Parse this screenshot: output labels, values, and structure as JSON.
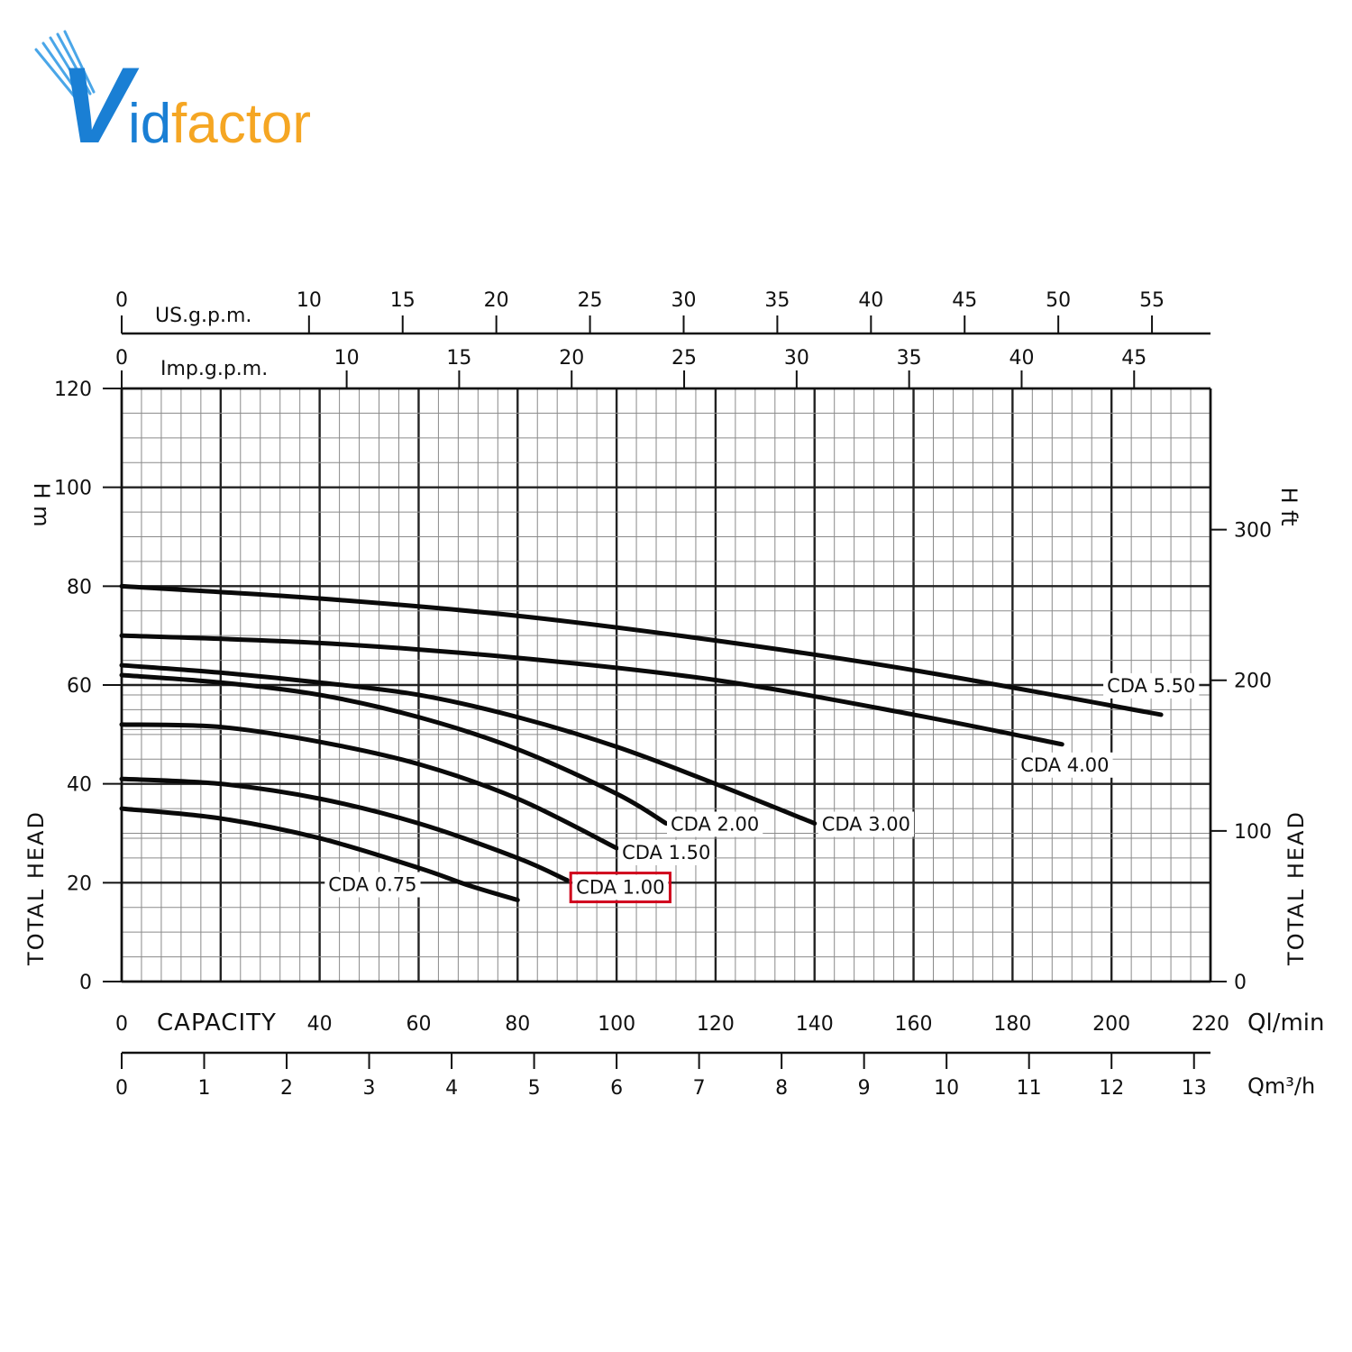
{
  "logo": {
    "text_v": "V",
    "text_id": "id",
    "text_factor": "factor",
    "color_blue": "#1a7fd4",
    "color_orange": "#f5a623"
  },
  "chart_data": {
    "type": "line",
    "xlabel": "CAPACITY",
    "x_unit": "Ql/min",
    "xlim": [
      0,
      220
    ],
    "x_ticks": [
      0,
      40,
      60,
      80,
      100,
      120,
      140,
      160,
      180,
      200,
      220
    ],
    "ylim": [
      0,
      120
    ],
    "y_ticks": [
      0,
      20,
      40,
      60,
      80,
      100,
      120
    ],
    "ylabel": "TOTAL HEAD",
    "y_unit": "H m",
    "y_right_label": "TOTAL HEAD",
    "y_right_unit": "H ft",
    "y_right_ticks": [
      0,
      100,
      200,
      300
    ],
    "y_ft_per_m": 3.2808,
    "secondary_x_axes": [
      {
        "unit": "US.g.p.m.",
        "lpm_per_unit": 3.785,
        "ticks": [
          0,
          10,
          15,
          20,
          25,
          30,
          35,
          40,
          45,
          50,
          55
        ]
      },
      {
        "unit": "Imp.g.p.m.",
        "lpm_per_unit": 4.546,
        "ticks": [
          0,
          10,
          15,
          20,
          25,
          30,
          35,
          40,
          45
        ]
      },
      {
        "unit": "Qm³/h",
        "lpm_per_unit": 16.667,
        "ticks": [
          0,
          1,
          2,
          3,
          4,
          5,
          6,
          7,
          8,
          9,
          10,
          11,
          12,
          13
        ]
      }
    ],
    "highlighted_series": "CDA 1.00",
    "highlight_color": "#d0021b",
    "series": [
      {
        "name": "CDA 0.75",
        "x": [
          0,
          20,
          40,
          60,
          70,
          80
        ],
        "y": [
          35,
          33,
          29,
          23,
          19.5,
          16.5
        ]
      },
      {
        "name": "CDA 1.00",
        "x": [
          0,
          20,
          40,
          60,
          80,
          90
        ],
        "y": [
          41,
          40,
          37,
          32,
          25,
          20.5
        ]
      },
      {
        "name": "CDA 1.50",
        "x": [
          0,
          20,
          40,
          60,
          80,
          100
        ],
        "y": [
          52,
          51.5,
          48.5,
          44,
          37,
          27
        ]
      },
      {
        "name": "CDA 2.00",
        "x": [
          0,
          20,
          40,
          60,
          80,
          100,
          110
        ],
        "y": [
          62,
          60.5,
          58,
          53.5,
          47,
          38,
          32
        ]
      },
      {
        "name": "CDA 3.00",
        "x": [
          0,
          20,
          40,
          60,
          80,
          100,
          120,
          140
        ],
        "y": [
          64,
          62.5,
          60.5,
          58,
          53.5,
          47.5,
          40,
          32
        ]
      },
      {
        "name": "CDA 4.00",
        "x": [
          0,
          40,
          80,
          120,
          160,
          190
        ],
        "y": [
          70,
          68.5,
          65.5,
          61,
          54,
          48
        ]
      },
      {
        "name": "CDA 5.50",
        "x": [
          0,
          40,
          80,
          120,
          160,
          210
        ],
        "y": [
          80,
          77.5,
          74,
          69,
          63,
          54
        ]
      }
    ]
  }
}
